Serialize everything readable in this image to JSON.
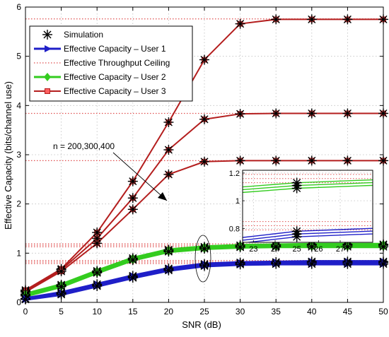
{
  "chart_data": {
    "type": "line",
    "xlabel": "SNR (dB)",
    "ylabel": "Effective Capacity (bits/channel use)",
    "xlim": [
      0,
      50
    ],
    "ylim": [
      0,
      6
    ],
    "xticks": [
      0,
      5,
      10,
      15,
      20,
      25,
      30,
      35,
      40,
      45,
      50
    ],
    "yticks": [
      0,
      1,
      2,
      3,
      4,
      5,
      6
    ],
    "grid": true,
    "legend_position": "top-left",
    "x": [
      0,
      5,
      10,
      15,
      20,
      25,
      30,
      35,
      40,
      45,
      50
    ],
    "series": [
      {
        "name": "Effective Capacity – User 3",
        "group": "user3",
        "values": [
          0.25,
          0.68,
          1.42,
          2.46,
          3.66,
          4.93,
          5.66,
          5.75,
          5.75,
          5.75,
          5.75
        ]
      },
      {
        "name": "",
        "group": "user3",
        "values": [
          0.23,
          0.66,
          1.3,
          2.12,
          3.1,
          3.72,
          3.83,
          3.84,
          3.84,
          3.84,
          3.84
        ]
      },
      {
        "name": "",
        "group": "user3",
        "values": [
          0.21,
          0.63,
          1.2,
          1.89,
          2.6,
          2.86,
          2.88,
          2.88,
          2.88,
          2.88,
          2.88
        ]
      },
      {
        "name": "Effective Capacity – User 2",
        "group": "user2",
        "values": [
          0.17,
          0.36,
          0.64,
          0.9,
          1.07,
          1.13,
          1.16,
          1.17,
          1.18,
          1.18,
          1.18
        ]
      },
      {
        "name": "",
        "group": "user2",
        "values": [
          0.15,
          0.34,
          0.62,
          0.88,
          1.05,
          1.11,
          1.14,
          1.15,
          1.16,
          1.16,
          1.16
        ]
      },
      {
        "name": "",
        "group": "user2",
        "values": [
          0.13,
          0.32,
          0.6,
          0.86,
          1.03,
          1.09,
          1.12,
          1.13,
          1.13,
          1.13,
          1.13
        ]
      },
      {
        "name": "Effective Capacity – User 1",
        "group": "user1",
        "values": [
          0.08,
          0.2,
          0.37,
          0.54,
          0.69,
          0.78,
          0.81,
          0.82,
          0.83,
          0.83,
          0.83
        ]
      },
      {
        "name": "",
        "group": "user1",
        "values": [
          0.07,
          0.18,
          0.35,
          0.52,
          0.67,
          0.76,
          0.79,
          0.8,
          0.81,
          0.81,
          0.81
        ]
      },
      {
        "name": "",
        "group": "user1",
        "values": [
          0.06,
          0.16,
          0.33,
          0.5,
          0.65,
          0.74,
          0.77,
          0.78,
          0.78,
          0.78,
          0.78
        ]
      }
    ],
    "ceilings": [
      5.76,
      3.84,
      2.88,
      1.19,
      1.16,
      1.13,
      0.85,
      0.82,
      0.79
    ],
    "legend": [
      {
        "label": "Simulation",
        "style": "simulation"
      },
      {
        "label": "Effective Capacity – User 1",
        "style": "user1"
      },
      {
        "label": "Effective Throughput Ceiling",
        "style": "ceiling"
      },
      {
        "label": "Effective Capacity – User 2",
        "style": "user2"
      },
      {
        "label": "Effective Capacity – User 3",
        "style": "user3"
      }
    ],
    "annotation": "n = 200,300,400",
    "inset": {
      "xlim": [
        22.5,
        28.5
      ],
      "ylim": [
        0.7,
        1.22
      ],
      "xticks": [
        23,
        24,
        25,
        26,
        27
      ],
      "yticks": [
        0.8,
        1,
        1.2
      ],
      "ytick_labels": [
        "0.8",
        "1",
        "1.2"
      ]
    },
    "colors": {
      "user1": "#1f1fc8",
      "user2": "#33cc1f",
      "user3": "#b41e1e",
      "ceiling": "#e05050",
      "simulation": "#000000",
      "grid": "#bfbfbf"
    }
  }
}
